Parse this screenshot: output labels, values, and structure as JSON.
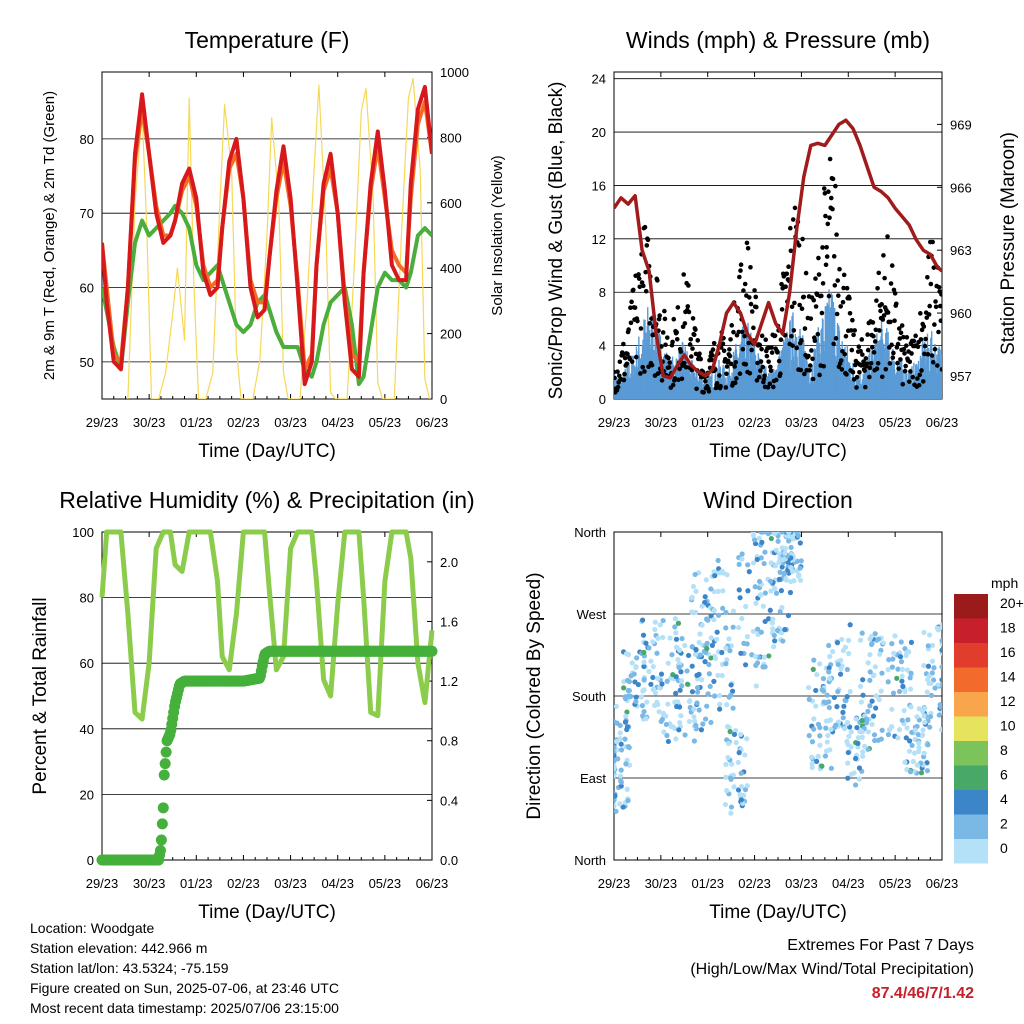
{
  "colors": {
    "t2m": "#d7191c",
    "t9m": "#f46d25",
    "td": "#4aad3c",
    "solar": "#f6d858",
    "wind": "#5a9bd5",
    "gust": "#000000",
    "pressure": "#a01c1c",
    "rh": "#8ccc4c",
    "precip": "#45b03b"
  },
  "x_ticks": [
    "29/23",
    "30/23",
    "01/23",
    "02/23",
    "03/23",
    "04/23",
    "05/23",
    "06/23"
  ],
  "xlabel": "Time (Day/UTC)",
  "chart_data": [
    {
      "id": "temperature",
      "type": "line",
      "title": "Temperature (F)",
      "xlabel": "Time (Day/UTC)",
      "ylabel": "2m & 9m T (Red, Orange) & 2m Td (Green)",
      "ylabel_right": "Solar Insolation (Yellow)",
      "ylim": [
        45,
        89
      ],
      "yticks": [
        50,
        60,
        70,
        80
      ],
      "ylim_right": [
        0,
        1000
      ],
      "yticks_right": [
        0,
        200,
        400,
        600,
        800,
        1000
      ],
      "series": [
        {
          "key": "t2m",
          "x": [
            0,
            0.1,
            0.25,
            0.4,
            0.55,
            0.7,
            0.85,
            1.0,
            1.15,
            1.3,
            1.45,
            1.55,
            1.7,
            1.85,
            2.0,
            2.15,
            2.3,
            2.45,
            2.55,
            2.7,
            2.85,
            3.0,
            3.15,
            3.3,
            3.45,
            3.55,
            3.7,
            3.85,
            4.0,
            4.15,
            4.3,
            4.45,
            4.55,
            4.7,
            4.85,
            5.0,
            5.15,
            5.3,
            5.45,
            5.55,
            5.7,
            5.85,
            6.0,
            6.15,
            6.3,
            6.45,
            6.55,
            6.7,
            6.85,
            7.0
          ],
          "y": [
            66,
            58,
            50,
            49,
            60,
            78,
            86,
            78,
            70,
            66,
            67,
            69,
            74,
            76,
            72,
            62,
            59,
            60,
            68,
            77,
            80,
            72,
            60,
            56,
            57,
            64,
            73,
            79,
            72,
            60,
            47,
            50,
            63,
            74,
            78,
            70,
            58,
            49,
            48,
            62,
            74,
            81,
            73,
            63,
            61,
            61,
            74,
            84,
            87,
            78
          ]
        },
        {
          "key": "t9m",
          "x": [
            0,
            0.25,
            0.4,
            0.55,
            0.7,
            0.85,
            1.0,
            1.15,
            1.3,
            1.45,
            1.55,
            1.7,
            1.85,
            2.0,
            2.15,
            2.3,
            2.45,
            2.55,
            2.7,
            2.85,
            3.0,
            3.15,
            3.3,
            3.45,
            3.55,
            3.7,
            3.85,
            4.0,
            4.15,
            4.3,
            4.45,
            4.55,
            4.7,
            4.85,
            5.0,
            5.15,
            5.3,
            5.45,
            5.55,
            5.7,
            5.85,
            6.0,
            6.15,
            6.3,
            6.45,
            6.55,
            6.7,
            6.85,
            7.0
          ],
          "y": [
            66,
            51,
            50,
            60,
            77,
            84,
            78,
            71,
            67,
            67,
            69,
            73,
            75,
            71,
            63,
            60,
            61,
            68,
            76,
            78,
            72,
            61,
            58,
            58,
            64,
            72,
            77,
            71,
            61,
            49,
            51,
            63,
            73,
            76,
            70,
            59,
            51,
            50,
            62,
            73,
            79,
            72,
            65,
            63,
            62,
            72,
            82,
            85,
            78
          ]
        },
        {
          "key": "td",
          "x": [
            0,
            0.25,
            0.4,
            0.55,
            0.7,
            0.85,
            1.0,
            1.15,
            1.3,
            1.45,
            1.55,
            1.7,
            1.85,
            2.0,
            2.15,
            2.3,
            2.45,
            2.55,
            2.7,
            2.85,
            3.0,
            3.15,
            3.3,
            3.45,
            3.55,
            3.7,
            3.85,
            4.0,
            4.15,
            4.3,
            4.45,
            4.55,
            4.7,
            4.85,
            5.0,
            5.15,
            5.3,
            5.45,
            5.55,
            5.7,
            5.85,
            6.0,
            6.15,
            6.3,
            6.45,
            6.55,
            6.7,
            6.85,
            7.0
          ],
          "y": [
            60,
            52,
            49,
            58,
            66,
            69,
            67,
            68,
            69,
            70,
            71,
            70,
            68,
            63,
            61,
            62,
            63,
            61,
            58,
            55,
            54,
            55,
            58,
            59,
            57,
            54,
            52,
            52,
            52,
            49,
            48,
            50,
            55,
            58,
            59,
            60,
            55,
            47,
            48,
            54,
            60,
            62,
            61,
            61,
            60,
            62,
            67,
            68,
            67
          ]
        },
        {
          "key": "solar",
          "x": [
            0.55,
            0.7,
            0.85,
            0.95,
            1.05,
            1.2,
            1.35,
            1.5,
            1.6,
            1.75,
            1.85,
            1.95,
            2.05,
            2.2,
            2.35,
            2.5,
            2.6,
            2.75,
            2.85,
            2.95,
            3.05,
            3.2,
            3.35,
            3.5,
            3.6,
            3.75,
            3.85,
            3.95,
            4.05,
            4.2,
            4.35,
            4.5,
            4.6,
            4.75,
            4.85,
            4.95,
            5.05,
            5.2,
            5.35,
            5.5,
            5.6,
            5.75,
            5.85,
            5.95,
            6.05,
            6.2,
            6.35,
            6.5,
            6.6,
            6.75,
            6.85,
            6.95
          ],
          "y": [
            0,
            600,
            880,
            520,
            0,
            0,
            80,
            260,
            400,
            180,
            920,
            350,
            0,
            0,
            80,
            600,
            900,
            700,
            150,
            0,
            0,
            0,
            120,
            500,
            860,
            600,
            80,
            0,
            0,
            0,
            300,
            700,
            960,
            520,
            20,
            0,
            0,
            0,
            400,
            880,
            950,
            620,
            50,
            0,
            0,
            0,
            500,
            920,
            980,
            700,
            60,
            0
          ]
        }
      ]
    },
    {
      "id": "winds",
      "type": "line",
      "title": "Winds (mph) & Pressure (mb)",
      "xlabel": "Time (Day/UTC)",
      "ylabel": "Sonic/Prop Wind & Gust (Blue, Black)",
      "ylabel_right": "Station Pressure (Maroon)",
      "ylim": [
        0,
        24.5
      ],
      "yticks": [
        0,
        4,
        8,
        12,
        16,
        20,
        24
      ],
      "ylim_right": [
        955.9,
        971.5
      ],
      "yticks_right": [
        957,
        960,
        963,
        966,
        969
      ],
      "series": [
        {
          "key": "wind",
          "x": [
            0,
            0.15,
            0.3,
            0.45,
            0.6,
            0.75,
            0.9,
            1.05,
            1.2,
            1.35,
            1.5,
            1.65,
            1.8,
            1.95,
            2.1,
            2.25,
            2.4,
            2.55,
            2.7,
            2.85,
            3.0,
            3.15,
            3.3,
            3.45,
            3.6,
            3.75,
            3.9,
            4.05,
            4.2,
            4.35,
            4.5,
            4.65,
            4.8,
            4.95,
            5.1,
            5.25,
            5.4,
            5.55,
            5.7,
            5.85,
            6.0,
            6.15,
            6.3,
            6.45,
            6.6,
            6.75,
            6.9,
            7.0
          ],
          "y": [
            1.5,
            1,
            2,
            2.5,
            4,
            5,
            4,
            3,
            2,
            2.5,
            3,
            2,
            1.5,
            1,
            1.5,
            2,
            1.5,
            2.5,
            3.5,
            4,
            3,
            2,
            1.5,
            2,
            3,
            4,
            5,
            3,
            2,
            3.5,
            5,
            6,
            4,
            3,
            2,
            1.5,
            2,
            3,
            4,
            3.5,
            2.5,
            2,
            1.5,
            2,
            3,
            3.5,
            3,
            2.5
          ]
        },
        {
          "key": "gust",
          "x": [
            0,
            0.15,
            0.3,
            0.45,
            0.6,
            0.75,
            0.9,
            1.05,
            1.2,
            1.35,
            1.5,
            1.65,
            1.8,
            1.95,
            2.1,
            2.25,
            2.4,
            2.55,
            2.7,
            2.85,
            3.0,
            3.15,
            3.3,
            3.45,
            3.6,
            3.75,
            3.9,
            4.05,
            4.2,
            4.35,
            4.5,
            4.65,
            4.8,
            4.95,
            5.1,
            5.25,
            5.4,
            5.55,
            5.7,
            5.85,
            6.0,
            6.15,
            6.3,
            6.45,
            6.6,
            6.75,
            6.9,
            7.0
          ],
          "y": [
            2,
            3,
            4,
            7,
            10,
            9,
            8,
            5,
            4,
            5,
            7,
            6,
            3,
            2,
            3,
            4,
            3,
            5,
            8,
            9,
            6,
            4,
            3,
            4,
            7,
            10,
            12,
            8,
            5,
            8,
            12,
            14,
            10,
            7,
            4,
            3,
            4,
            6,
            8,
            9,
            6,
            4,
            3,
            4,
            6,
            9,
            8,
            6
          ]
        },
        {
          "key": "pressure",
          "x": [
            0,
            0.15,
            0.3,
            0.45,
            0.6,
            0.75,
            0.9,
            1.05,
            1.2,
            1.35,
            1.5,
            1.65,
            1.8,
            1.95,
            2.1,
            2.25,
            2.4,
            2.55,
            2.7,
            2.85,
            3.0,
            3.15,
            3.3,
            3.45,
            3.6,
            3.75,
            3.9,
            4.05,
            4.2,
            4.35,
            4.5,
            4.65,
            4.8,
            4.95,
            5.1,
            5.25,
            5.4,
            5.55,
            5.7,
            5.85,
            6.0,
            6.15,
            6.3,
            6.45,
            6.6,
            6.75,
            6.9,
            7.0
          ],
          "y": [
            965,
            965.5,
            965.2,
            965.6,
            963,
            962,
            959,
            957,
            956.9,
            957.5,
            958,
            957.5,
            957.2,
            957,
            957.3,
            958.5,
            960,
            960.5,
            960,
            959,
            958.5,
            959.5,
            960.5,
            959.5,
            959,
            961,
            964,
            966.5,
            968,
            968.1,
            968,
            968.5,
            969,
            969.2,
            968.8,
            968,
            967,
            966,
            965.8,
            965.5,
            965,
            964.6,
            964.2,
            963.5,
            963,
            962.8,
            962.2,
            962
          ]
        }
      ]
    },
    {
      "id": "humidity",
      "type": "line",
      "title": "Relative Humidity (%) & Precipitation (in)",
      "xlabel": "Time (Day/UTC)",
      "ylabel": "Percent & Total Rainfall",
      "ylim": [
        0,
        100
      ],
      "yticks": [
        0,
        20,
        40,
        60,
        80,
        100
      ],
      "ylim_right": [
        0,
        2.2
      ],
      "yticks_right": [
        0.0,
        0.4,
        0.8,
        1.2,
        1.6,
        2.0
      ],
      "series": [
        {
          "key": "rh",
          "x": [
            0,
            0.1,
            0.25,
            0.4,
            0.55,
            0.7,
            0.85,
            1.0,
            1.15,
            1.3,
            1.45,
            1.55,
            1.7,
            1.85,
            2.0,
            2.15,
            2.3,
            2.45,
            2.55,
            2.7,
            2.85,
            3.0,
            3.15,
            3.3,
            3.45,
            3.55,
            3.7,
            3.85,
            4.0,
            4.15,
            4.3,
            4.45,
            4.55,
            4.7,
            4.85,
            5.0,
            5.15,
            5.3,
            5.45,
            5.55,
            5.7,
            5.85,
            6.0,
            6.15,
            6.3,
            6.45,
            6.55,
            6.7,
            6.85,
            7.0
          ],
          "y": [
            80,
            100,
            100,
            100,
            75,
            45,
            43,
            60,
            95,
            100,
            100,
            90,
            88,
            100,
            100,
            100,
            100,
            85,
            62,
            58,
            75,
            100,
            100,
            100,
            100,
            82,
            58,
            62,
            95,
            100,
            100,
            100,
            85,
            55,
            50,
            78,
            100,
            100,
            100,
            80,
            45,
            44,
            85,
            100,
            100,
            100,
            92,
            60,
            48,
            70
          ]
        },
        {
          "key": "precip",
          "x": [
            0,
            0.5,
            1.2,
            1.25,
            1.3,
            1.32,
            1.38,
            1.45,
            1.55,
            1.65,
            1.75,
            1.9,
            2.2,
            2.5,
            3.0,
            3.35,
            3.45,
            3.55,
            4.0,
            5.0,
            6.0,
            7.0
          ],
          "y": [
            0,
            0,
            0,
            0.08,
            0.35,
            0.57,
            0.8,
            0.85,
            1.05,
            1.18,
            1.2,
            1.2,
            1.2,
            1.2,
            1.2,
            1.22,
            1.38,
            1.4,
            1.4,
            1.4,
            1.4,
            1.4
          ]
        }
      ]
    },
    {
      "id": "direction",
      "type": "scatter",
      "title": "Wind Direction",
      "xlabel": "Time (Day/UTC)",
      "ylabel": "Direction (Colored By Speed)",
      "yticks": [
        "North",
        "East",
        "South",
        "West",
        "North"
      ],
      "ylim": [
        0,
        360
      ],
      "color_scale": {
        "unit": "mph",
        "labels": [
          "20+",
          "18",
          "16",
          "14",
          "12",
          "10",
          "8",
          "6",
          "4",
          "2",
          "0"
        ],
        "colors": [
          "#9b1b1b",
          "#c8202a",
          "#e23c2c",
          "#f26b2c",
          "#f9a54c",
          "#e6e45c",
          "#7cc35c",
          "#48a868",
          "#3c85c8",
          "#7ab8e6",
          "#b4e1f7"
        ]
      }
    }
  ],
  "info": {
    "location": "Location: Woodgate",
    "elevation": "Station elevation: 442.966 m",
    "latlon": "Station lat/lon: 43.5324; -75.159",
    "created": "Figure created on Sun, 2025-07-06, at 23:46 UTC",
    "recent": "Most recent data timestamp: 2025/07/06 23:15:00"
  },
  "extremes": {
    "line1": "Extremes For Past 7 Days",
    "line2": "(High/Low/Max Wind/Total Precipitation)",
    "value": "87.4/46/7/1.42"
  }
}
